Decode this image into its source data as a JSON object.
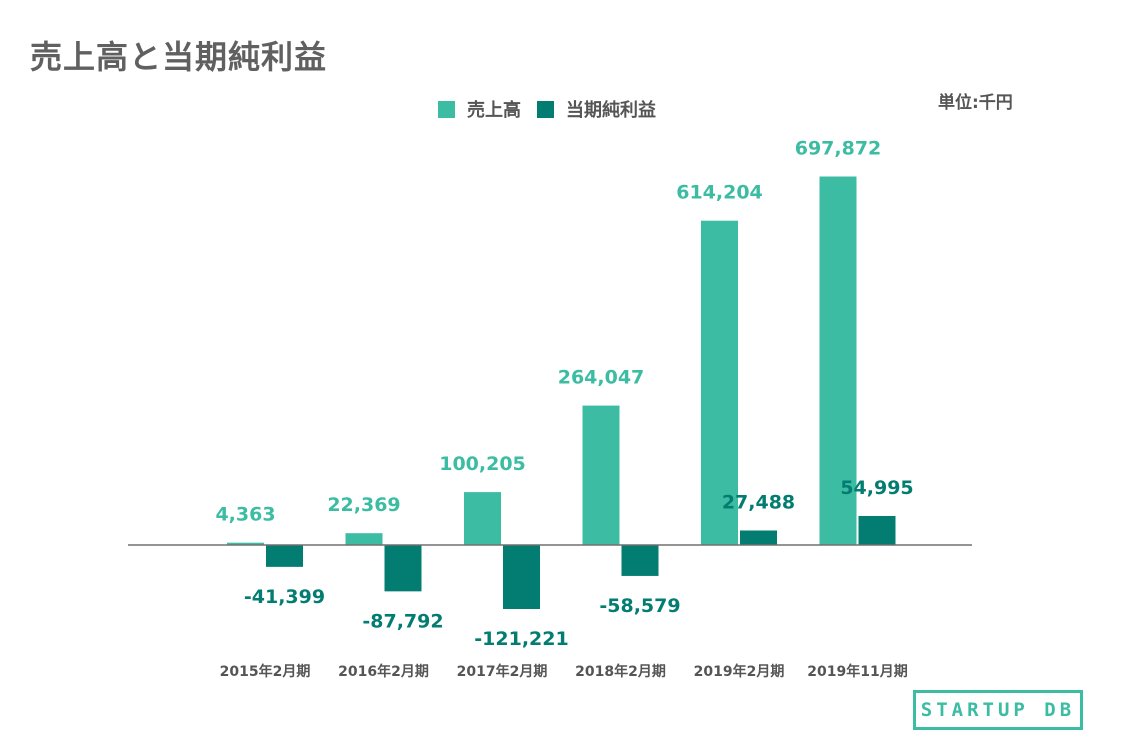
{
  "header": {
    "title": "売上高と当期純利益",
    "unit_label": "単位:千円"
  },
  "legend": {
    "items": [
      {
        "label": "売上高",
        "color": "#3cbda3"
      },
      {
        "label": "当期純利益",
        "color": "#037c72"
      }
    ]
  },
  "logo": {
    "text": "STARTUP DB"
  },
  "chart_data": {
    "type": "bar",
    "title": "売上高と当期純利益",
    "xlabel": "",
    "ylabel": "",
    "categories": [
      "2015年2月期",
      "2016年2月期",
      "2017年2月期",
      "2018年2月期",
      "2019年2月期",
      "2019年11月期"
    ],
    "series": [
      {
        "name": "売上高",
        "color": "#3cbda3",
        "values": [
          4363,
          22369,
          100205,
          264047,
          614204,
          697872
        ],
        "value_labels": [
          "4,363",
          "22,369",
          "100,205",
          "264,047",
          "614,204",
          "697,872"
        ]
      },
      {
        "name": "当期純利益",
        "color": "#037c72",
        "values": [
          -41399,
          -87792,
          -121221,
          -58579,
          27488,
          54995
        ],
        "value_labels": [
          "-41,399",
          "-87,792",
          "-121,221",
          "-58,579",
          "27,488",
          "54,995"
        ]
      }
    ],
    "ylim": [
      -160000,
      720000
    ],
    "grid": false,
    "legend_position": "top-center",
    "axis_color": "#707070",
    "category_label_color": "#555555"
  }
}
